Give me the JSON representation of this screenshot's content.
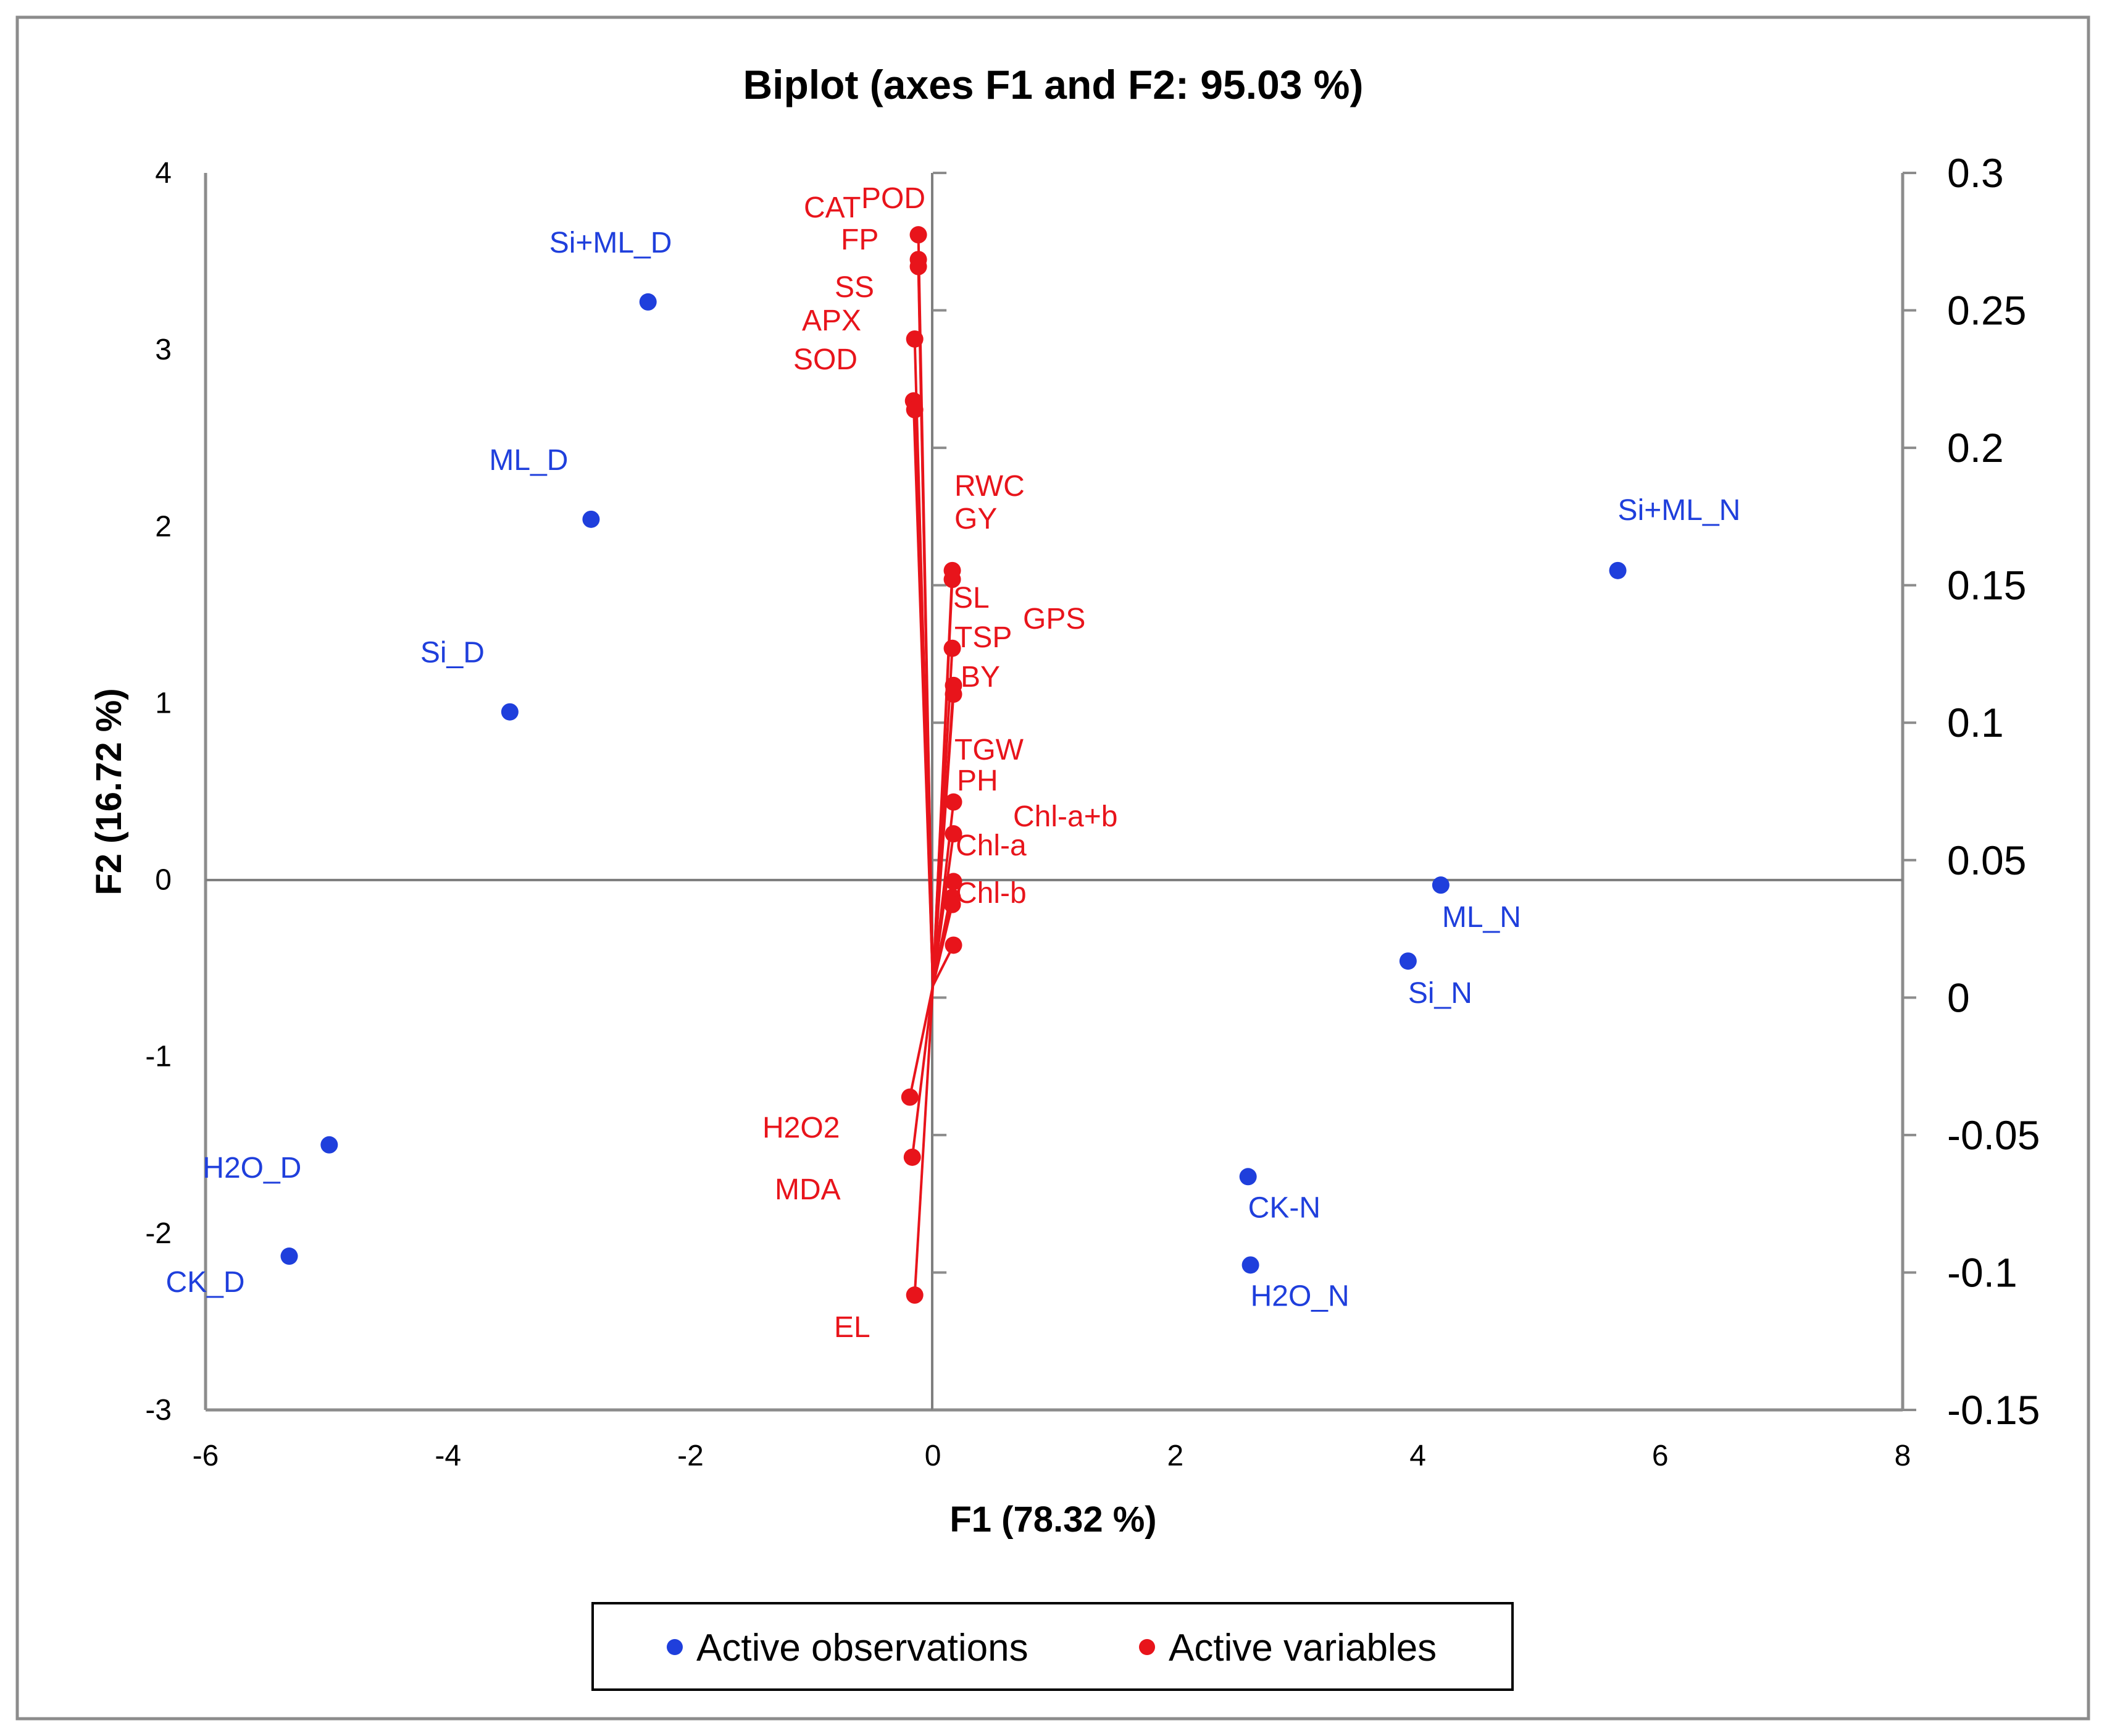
{
  "chart_data": {
    "type": "scatter",
    "title": "Biplot (axes F1 and F2: 95.03 %)",
    "xlabel": "F1 (78.32 %)",
    "ylabel": "F2 (16.72 %)",
    "xlim": [
      -6,
      8
    ],
    "ylim": [
      -3,
      4
    ],
    "x_ticks": [
      "-6",
      "-4",
      "-2",
      "0",
      "2",
      "4",
      "6",
      "8"
    ],
    "y_ticks": [
      "-3",
      "-2",
      "-1",
      "0",
      "1",
      "2",
      "3",
      "4"
    ],
    "y2lim": [
      -0.15,
      0.3
    ],
    "y2_ticks": [
      "-0.15",
      "-0.1",
      "-0.05",
      "0",
      "0.05",
      "0.1",
      "0.15",
      "0.2",
      "0.25",
      "0.3"
    ],
    "grid": false,
    "legend_position": "bottom",
    "colors": {
      "observations": "#1f3fdc",
      "variables": "#e8141b",
      "axis": "#8c8c8c"
    },
    "series": [
      {
        "name": "Active observations",
        "points": [
          {
            "label": "Si+ML_D",
            "x": -2.35,
            "y": 3.27
          },
          {
            "label": "ML_D",
            "x": -2.82,
            "y": 2.04
          },
          {
            "label": "Si_D",
            "x": -3.49,
            "y": 0.95
          },
          {
            "label": "H2O_D",
            "x": -4.98,
            "y": -1.5
          },
          {
            "label": "CK_D",
            "x": -5.31,
            "y": -2.13
          },
          {
            "label": "Si+ML_N",
            "x": 5.65,
            "y": 1.75
          },
          {
            "label": "ML_N",
            "x": 4.19,
            "y": -0.03
          },
          {
            "label": "Si_N",
            "x": 3.92,
            "y": -0.46
          },
          {
            "label": "CK-N",
            "x": 2.6,
            "y": -1.68
          },
          {
            "label": "H2O_N",
            "x": 2.62,
            "y": -2.18
          }
        ]
      },
      {
        "name": "Active variables",
        "origin": {
          "x": 0,
          "y": -0.6
        },
        "points": [
          {
            "label": "CAT",
            "x": -0.12,
            "y": 3.65
          },
          {
            "label": "POD",
            "x": -0.12,
            "y": 3.51
          },
          {
            "label": "FP",
            "x": -0.12,
            "y": 3.47
          },
          {
            "label": "SS",
            "x": -0.15,
            "y": 3.06
          },
          {
            "label": "APX",
            "x": -0.16,
            "y": 2.71
          },
          {
            "label": "SOD",
            "x": -0.15,
            "y": 2.66
          },
          {
            "label": "RWC",
            "x": 0.16,
            "y": 1.75
          },
          {
            "label": "GY",
            "x": 0.16,
            "y": 1.7
          },
          {
            "label": "SL",
            "x": 0.16,
            "y": 1.31
          },
          {
            "label": "GPS",
            "x": 0.17,
            "y": 1.1
          },
          {
            "label": "TSP",
            "x": 0.17,
            "y": 1.05
          },
          {
            "label": "BY",
            "x": 0.17,
            "y": 0.44
          },
          {
            "label": "TGW",
            "x": 0.17,
            "y": 0.26
          },
          {
            "label": "PH",
            "x": 0.17,
            "y": -0.01
          },
          {
            "label": "Chl-a+b",
            "x": 0.16,
            "y": -0.1
          },
          {
            "label": "Chl-a",
            "x": 0.17,
            "y": -0.37
          },
          {
            "label": "Chl-b",
            "x": 0.16,
            "y": -0.14
          },
          {
            "label": "H2O2",
            "x": -0.19,
            "y": -1.23
          },
          {
            "label": "MDA",
            "x": -0.17,
            "y": -1.57
          },
          {
            "label": "EL",
            "x": -0.15,
            "y": -2.35
          }
        ]
      }
    ]
  }
}
